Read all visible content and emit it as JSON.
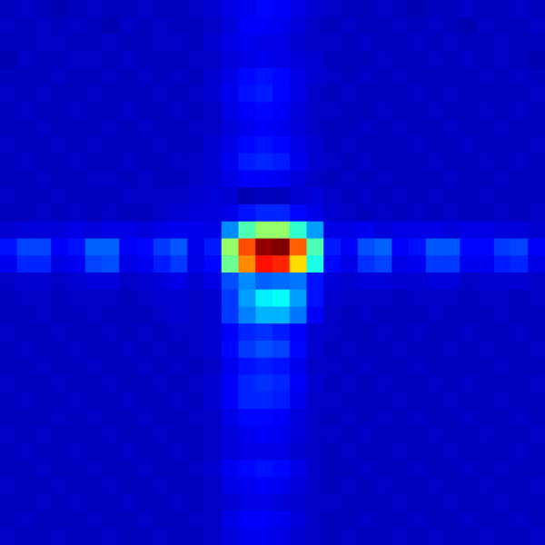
{
  "chart_data": {
    "type": "heatmap",
    "tick_labels": false,
    "zlim": [
      0,
      1
    ],
    "z": [
      [
        0.06,
        0.07,
        0.06,
        0.05,
        0.06,
        0.07,
        0.06,
        0.06,
        0.07,
        0.06,
        0.06,
        0.07,
        0.08,
        0.1,
        0.11,
        0.13,
        0.12,
        0.1,
        0.08,
        0.07,
        0.06,
        0.06,
        0.07,
        0.06,
        0.05,
        0.06,
        0.06,
        0.07,
        0.06,
        0.06,
        0.07,
        0.06
      ],
      [
        0.07,
        0.06,
        0.07,
        0.06,
        0.07,
        0.06,
        0.05,
        0.07,
        0.06,
        0.07,
        0.06,
        0.06,
        0.07,
        0.09,
        0.12,
        0.12,
        0.11,
        0.09,
        0.07,
        0.06,
        0.07,
        0.06,
        0.06,
        0.07,
        0.06,
        0.07,
        0.06,
        0.05,
        0.07,
        0.06,
        0.06,
        0.07
      ],
      [
        0.06,
        0.06,
        0.07,
        0.07,
        0.06,
        0.06,
        0.07,
        0.06,
        0.06,
        0.07,
        0.07,
        0.06,
        0.08,
        0.1,
        0.11,
        0.1,
        0.1,
        0.08,
        0.07,
        0.07,
        0.06,
        0.07,
        0.06,
        0.06,
        0.07,
        0.06,
        0.07,
        0.06,
        0.06,
        0.07,
        0.06,
        0.06
      ],
      [
        0.05,
        0.07,
        0.06,
        0.06,
        0.07,
        0.07,
        0.06,
        0.07,
        0.06,
        0.06,
        0.06,
        0.07,
        0.07,
        0.09,
        0.1,
        0.11,
        0.1,
        0.09,
        0.08,
        0.06,
        0.06,
        0.06,
        0.07,
        0.06,
        0.06,
        0.07,
        0.06,
        0.07,
        0.06,
        0.07,
        0.06,
        0.05
      ],
      [
        0.06,
        0.06,
        0.06,
        0.07,
        0.06,
        0.06,
        0.07,
        0.06,
        0.07,
        0.06,
        0.07,
        0.06,
        0.08,
        0.1,
        0.13,
        0.14,
        0.13,
        0.1,
        0.08,
        0.07,
        0.06,
        0.07,
        0.06,
        0.07,
        0.06,
        0.06,
        0.06,
        0.06,
        0.07,
        0.06,
        0.07,
        0.06
      ],
      [
        0.07,
        0.06,
        0.07,
        0.06,
        0.06,
        0.07,
        0.06,
        0.06,
        0.06,
        0.07,
        0.06,
        0.07,
        0.08,
        0.11,
        0.14,
        0.15,
        0.13,
        0.1,
        0.07,
        0.06,
        0.07,
        0.06,
        0.06,
        0.06,
        0.07,
        0.06,
        0.07,
        0.06,
        0.06,
        0.06,
        0.06,
        0.07
      ],
      [
        0.06,
        0.07,
        0.06,
        0.06,
        0.07,
        0.06,
        0.06,
        0.07,
        0.06,
        0.06,
        0.07,
        0.06,
        0.07,
        0.1,
        0.12,
        0.13,
        0.12,
        0.09,
        0.07,
        0.07,
        0.06,
        0.06,
        0.07,
        0.06,
        0.06,
        0.07,
        0.06,
        0.06,
        0.07,
        0.06,
        0.07,
        0.06
      ],
      [
        0.06,
        0.06,
        0.07,
        0.06,
        0.06,
        0.06,
        0.07,
        0.06,
        0.07,
        0.06,
        0.06,
        0.07,
        0.07,
        0.09,
        0.11,
        0.12,
        0.11,
        0.09,
        0.07,
        0.06,
        0.06,
        0.07,
        0.06,
        0.07,
        0.06,
        0.06,
        0.07,
        0.06,
        0.06,
        0.07,
        0.06,
        0.06
      ],
      [
        0.07,
        0.06,
        0.06,
        0.07,
        0.06,
        0.07,
        0.06,
        0.06,
        0.06,
        0.07,
        0.06,
        0.06,
        0.08,
        0.1,
        0.13,
        0.14,
        0.13,
        0.1,
        0.08,
        0.06,
        0.07,
        0.06,
        0.06,
        0.06,
        0.07,
        0.06,
        0.06,
        0.07,
        0.06,
        0.06,
        0.06,
        0.07
      ],
      [
        0.06,
        0.07,
        0.06,
        0.06,
        0.07,
        0.06,
        0.06,
        0.07,
        0.06,
        0.06,
        0.07,
        0.07,
        0.08,
        0.11,
        0.15,
        0.16,
        0.15,
        0.11,
        0.08,
        0.07,
        0.06,
        0.07,
        0.06,
        0.06,
        0.06,
        0.07,
        0.06,
        0.06,
        0.07,
        0.06,
        0.07,
        0.06
      ],
      [
        0.06,
        0.06,
        0.07,
        0.06,
        0.06,
        0.07,
        0.07,
        0.06,
        0.07,
        0.06,
        0.06,
        0.07,
        0.08,
        0.1,
        0.12,
        0.12,
        0.11,
        0.09,
        0.07,
        0.06,
        0.07,
        0.06,
        0.07,
        0.06,
        0.06,
        0.06,
        0.07,
        0.06,
        0.06,
        0.07,
        0.06,
        0.06
      ],
      [
        0.07,
        0.06,
        0.06,
        0.07,
        0.06,
        0.06,
        0.06,
        0.07,
        0.07,
        0.07,
        0.07,
        0.08,
        0.09,
        0.08,
        0.05,
        0.06,
        0.06,
        0.08,
        0.09,
        0.07,
        0.06,
        0.07,
        0.06,
        0.07,
        0.06,
        0.07,
        0.06,
        0.06,
        0.07,
        0.06,
        0.06,
        0.06
      ],
      [
        0.06,
        0.06,
        0.07,
        0.06,
        0.07,
        0.06,
        0.07,
        0.06,
        0.06,
        0.07,
        0.08,
        0.09,
        0.09,
        0.1,
        0.14,
        0.16,
        0.16,
        0.13,
        0.1,
        0.08,
        0.07,
        0.06,
        0.07,
        0.06,
        0.07,
        0.06,
        0.07,
        0.06,
        0.06,
        0.07,
        0.06,
        0.07
      ],
      [
        0.08,
        0.09,
        0.09,
        0.09,
        0.1,
        0.09,
        0.1,
        0.1,
        0.09,
        0.1,
        0.11,
        0.11,
        0.1,
        0.26,
        0.45,
        0.52,
        0.52,
        0.42,
        0.28,
        0.1,
        0.1,
        0.11,
        0.09,
        0.1,
        0.1,
        0.1,
        0.09,
        0.1,
        0.1,
        0.09,
        0.09,
        0.08
      ],
      [
        0.14,
        0.19,
        0.19,
        0.12,
        0.14,
        0.22,
        0.22,
        0.12,
        0.13,
        0.18,
        0.21,
        0.11,
        0.15,
        0.52,
        0.8,
        0.98,
        1.0,
        0.78,
        0.45,
        0.15,
        0.12,
        0.2,
        0.22,
        0.12,
        0.14,
        0.21,
        0.21,
        0.13,
        0.13,
        0.18,
        0.19,
        0.12
      ],
      [
        0.11,
        0.16,
        0.16,
        0.1,
        0.11,
        0.19,
        0.2,
        0.1,
        0.11,
        0.15,
        0.18,
        0.1,
        0.13,
        0.48,
        0.74,
        0.86,
        0.84,
        0.66,
        0.4,
        0.13,
        0.1,
        0.17,
        0.19,
        0.1,
        0.11,
        0.18,
        0.18,
        0.11,
        0.11,
        0.15,
        0.16,
        0.1
      ],
      [
        0.07,
        0.08,
        0.08,
        0.07,
        0.08,
        0.09,
        0.09,
        0.07,
        0.08,
        0.09,
        0.1,
        0.08,
        0.1,
        0.2,
        0.26,
        0.22,
        0.23,
        0.24,
        0.14,
        0.09,
        0.08,
        0.09,
        0.09,
        0.08,
        0.08,
        0.09,
        0.09,
        0.07,
        0.08,
        0.08,
        0.08,
        0.07
      ],
      [
        0.06,
        0.07,
        0.07,
        0.06,
        0.07,
        0.07,
        0.07,
        0.06,
        0.07,
        0.08,
        0.08,
        0.07,
        0.08,
        0.18,
        0.28,
        0.36,
        0.38,
        0.28,
        0.14,
        0.08,
        0.07,
        0.07,
        0.07,
        0.06,
        0.07,
        0.07,
        0.07,
        0.06,
        0.07,
        0.07,
        0.06,
        0.07
      ],
      [
        0.06,
        0.06,
        0.07,
        0.06,
        0.06,
        0.07,
        0.06,
        0.06,
        0.06,
        0.07,
        0.08,
        0.07,
        0.08,
        0.18,
        0.25,
        0.3,
        0.3,
        0.24,
        0.12,
        0.07,
        0.06,
        0.07,
        0.06,
        0.06,
        0.06,
        0.07,
        0.06,
        0.06,
        0.06,
        0.07,
        0.06,
        0.06
      ],
      [
        0.07,
        0.06,
        0.06,
        0.07,
        0.06,
        0.06,
        0.07,
        0.06,
        0.07,
        0.06,
        0.07,
        0.07,
        0.08,
        0.12,
        0.16,
        0.17,
        0.15,
        0.12,
        0.08,
        0.07,
        0.06,
        0.06,
        0.07,
        0.06,
        0.07,
        0.06,
        0.06,
        0.07,
        0.06,
        0.06,
        0.07,
        0.06
      ],
      [
        0.06,
        0.07,
        0.06,
        0.06,
        0.07,
        0.06,
        0.06,
        0.07,
        0.06,
        0.07,
        0.06,
        0.07,
        0.08,
        0.13,
        0.18,
        0.2,
        0.19,
        0.13,
        0.08,
        0.06,
        0.07,
        0.06,
        0.06,
        0.07,
        0.06,
        0.06,
        0.07,
        0.06,
        0.07,
        0.06,
        0.06,
        0.07
      ],
      [
        0.06,
        0.06,
        0.07,
        0.06,
        0.06,
        0.07,
        0.06,
        0.06,
        0.07,
        0.06,
        0.07,
        0.06,
        0.07,
        0.11,
        0.14,
        0.15,
        0.14,
        0.11,
        0.07,
        0.07,
        0.06,
        0.07,
        0.06,
        0.06,
        0.07,
        0.06,
        0.06,
        0.06,
        0.06,
        0.07,
        0.06,
        0.06
      ],
      [
        0.07,
        0.06,
        0.06,
        0.07,
        0.06,
        0.06,
        0.07,
        0.06,
        0.06,
        0.07,
        0.06,
        0.07,
        0.08,
        0.12,
        0.16,
        0.17,
        0.16,
        0.12,
        0.08,
        0.06,
        0.07,
        0.06,
        0.07,
        0.06,
        0.06,
        0.07,
        0.06,
        0.07,
        0.06,
        0.06,
        0.06,
        0.07
      ],
      [
        0.06,
        0.07,
        0.06,
        0.06,
        0.07,
        0.06,
        0.06,
        0.07,
        0.06,
        0.06,
        0.07,
        0.06,
        0.08,
        0.12,
        0.16,
        0.16,
        0.15,
        0.11,
        0.07,
        0.07,
        0.06,
        0.06,
        0.06,
        0.07,
        0.06,
        0.06,
        0.07,
        0.06,
        0.06,
        0.07,
        0.06,
        0.06
      ],
      [
        0.06,
        0.06,
        0.06,
        0.07,
        0.06,
        0.07,
        0.06,
        0.06,
        0.07,
        0.06,
        0.06,
        0.07,
        0.07,
        0.1,
        0.13,
        0.13,
        0.12,
        0.09,
        0.07,
        0.06,
        0.07,
        0.06,
        0.07,
        0.06,
        0.07,
        0.06,
        0.06,
        0.07,
        0.06,
        0.06,
        0.07,
        0.06
      ],
      [
        0.07,
        0.06,
        0.07,
        0.06,
        0.06,
        0.06,
        0.07,
        0.06,
        0.06,
        0.07,
        0.06,
        0.06,
        0.07,
        0.09,
        0.11,
        0.12,
        0.11,
        0.09,
        0.07,
        0.07,
        0.06,
        0.07,
        0.06,
        0.06,
        0.06,
        0.07,
        0.06,
        0.06,
        0.07,
        0.06,
        0.06,
        0.07
      ],
      [
        0.06,
        0.07,
        0.06,
        0.06,
        0.07,
        0.06,
        0.06,
        0.07,
        0.06,
        0.06,
        0.07,
        0.06,
        0.07,
        0.09,
        0.1,
        0.1,
        0.1,
        0.08,
        0.07,
        0.06,
        0.07,
        0.06,
        0.06,
        0.07,
        0.06,
        0.06,
        0.07,
        0.06,
        0.06,
        0.06,
        0.07,
        0.06
      ],
      [
        0.06,
        0.06,
        0.07,
        0.06,
        0.06,
        0.07,
        0.06,
        0.06,
        0.07,
        0.06,
        0.06,
        0.07,
        0.08,
        0.11,
        0.13,
        0.14,
        0.13,
        0.1,
        0.07,
        0.06,
        0.06,
        0.07,
        0.06,
        0.06,
        0.07,
        0.06,
        0.06,
        0.07,
        0.06,
        0.07,
        0.06,
        0.06
      ],
      [
        0.07,
        0.06,
        0.06,
        0.07,
        0.06,
        0.06,
        0.07,
        0.06,
        0.06,
        0.07,
        0.06,
        0.06,
        0.07,
        0.1,
        0.11,
        0.12,
        0.11,
        0.09,
        0.07,
        0.06,
        0.07,
        0.06,
        0.07,
        0.06,
        0.06,
        0.07,
        0.06,
        0.06,
        0.07,
        0.06,
        0.06,
        0.07
      ],
      [
        0.06,
        0.06,
        0.07,
        0.06,
        0.07,
        0.06,
        0.06,
        0.07,
        0.06,
        0.06,
        0.07,
        0.06,
        0.07,
        0.08,
        0.1,
        0.1,
        0.09,
        0.08,
        0.07,
        0.07,
        0.06,
        0.06,
        0.06,
        0.07,
        0.06,
        0.06,
        0.07,
        0.06,
        0.06,
        0.07,
        0.06,
        0.06
      ],
      [
        0.06,
        0.07,
        0.06,
        0.06,
        0.06,
        0.07,
        0.06,
        0.06,
        0.07,
        0.06,
        0.06,
        0.07,
        0.07,
        0.1,
        0.12,
        0.12,
        0.11,
        0.09,
        0.07,
        0.06,
        0.06,
        0.07,
        0.06,
        0.06,
        0.07,
        0.06,
        0.06,
        0.07,
        0.06,
        0.06,
        0.07,
        0.06
      ],
      [
        0.07,
        0.06,
        0.06,
        0.07,
        0.06,
        0.06,
        0.07,
        0.06,
        0.06,
        0.07,
        0.06,
        0.06,
        0.07,
        0.09,
        0.11,
        0.11,
        0.1,
        0.08,
        0.07,
        0.06,
        0.07,
        0.06,
        0.06,
        0.07,
        0.06,
        0.07,
        0.06,
        0.06,
        0.07,
        0.06,
        0.06,
        0.07
      ]
    ]
  }
}
